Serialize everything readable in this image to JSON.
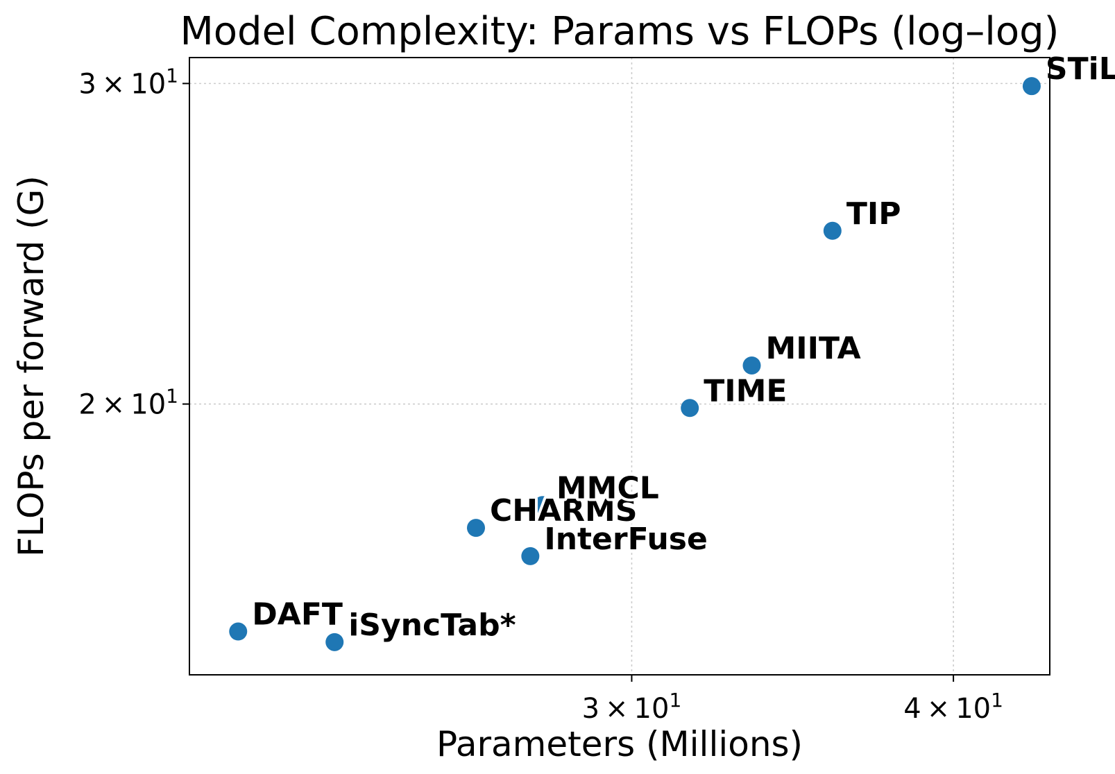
{
  "chart_data": {
    "type": "scatter",
    "title": "Model Complexity: Params vs FLOPs (log–log)",
    "xlabel": "Parameters (Millions)",
    "ylabel": "FLOPs per forward (G)",
    "xscale": "log",
    "yscale": "log",
    "xlim": [
      20.2,
      43.6
    ],
    "ylim": [
      14.2,
      31.0
    ],
    "grid": true,
    "legend": "none",
    "marker_color": "#1f77b4",
    "x_ticks": [
      {
        "value": 30,
        "mantissa": "3",
        "base": "10",
        "exponent": "1"
      },
      {
        "value": 40,
        "mantissa": "4",
        "base": "10",
        "exponent": "1"
      }
    ],
    "y_ticks": [
      {
        "value": 20,
        "mantissa": "2",
        "base": "10",
        "exponent": "1"
      },
      {
        "value": 30,
        "mantissa": "3",
        "base": "10",
        "exponent": "1"
      }
    ],
    "points": [
      {
        "label": "DAFT",
        "x": 21.1,
        "y": 15.0
      },
      {
        "label": "iSyncTab*",
        "x": 23.0,
        "y": 14.8
      },
      {
        "label": "CHARMS",
        "x": 26.1,
        "y": 17.1
      },
      {
        "label": "InterFuse",
        "x": 27.4,
        "y": 16.5
      },
      {
        "label": "MMCL",
        "x": 27.7,
        "y": 17.6
      },
      {
        "label": "TIME",
        "x": 31.6,
        "y": 19.9
      },
      {
        "label": "MIITA",
        "x": 33.4,
        "y": 21.0
      },
      {
        "label": "TIP",
        "x": 35.9,
        "y": 24.9
      },
      {
        "label": "STiL",
        "x": 42.9,
        "y": 29.9
      }
    ]
  }
}
